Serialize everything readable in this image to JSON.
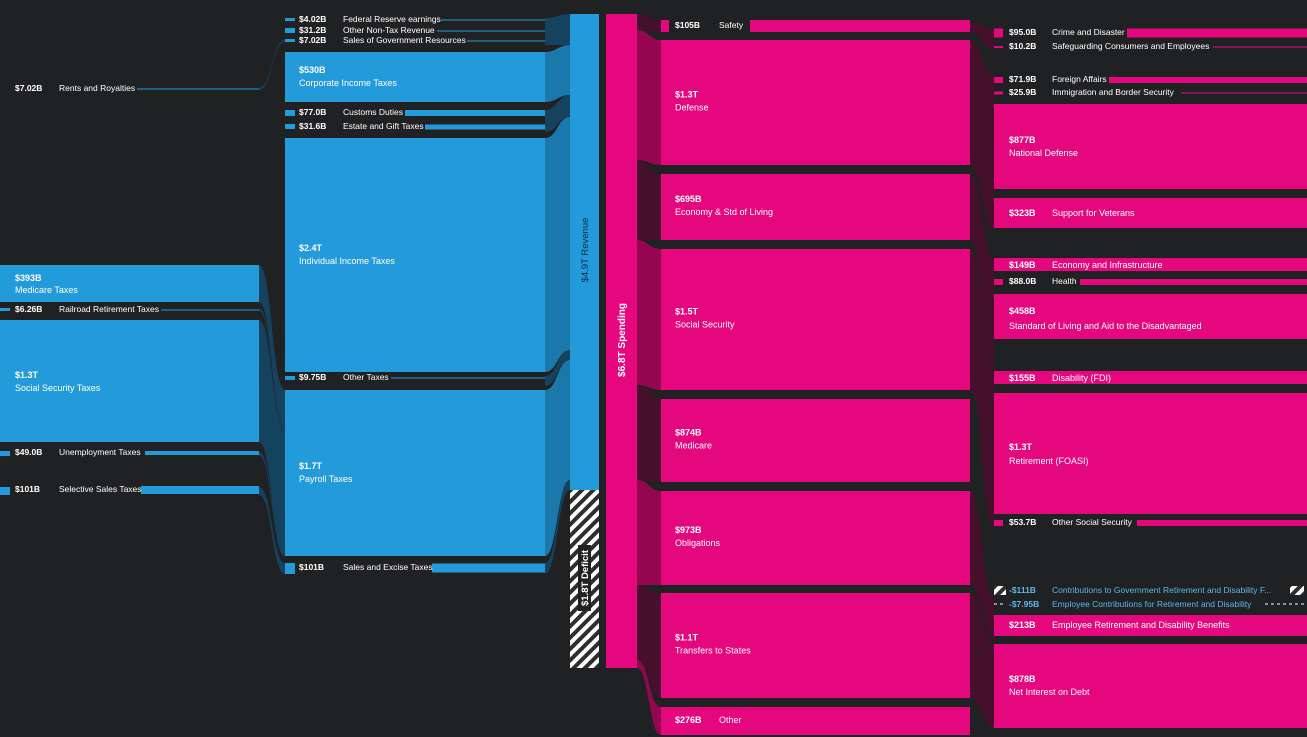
{
  "colors": {
    "background": "#202123",
    "revenue": "#239bda",
    "revenue_link": "#1b78aa",
    "revenue_link_dark": "#15425e",
    "spending": "#e5077e",
    "spending_link": "#94064f",
    "spending_link_dark": "#44102b",
    "deficit_stripe": "#ffffff",
    "deficit_stripe_bg": "#2e2e2e",
    "label_text": "#ffffff",
    "negative_text": "#5bb8ea"
  },
  "revenue": {
    "sources": [
      {
        "id": "rents",
        "value": "$7.02B",
        "label": "Rents and Royalties"
      },
      {
        "id": "medicare_taxes",
        "value": "$393B",
        "label": "Medicare Taxes"
      },
      {
        "id": "railroad",
        "value": "$6.26B",
        "label": "Railroad Retirement Taxes"
      },
      {
        "id": "ss_taxes",
        "value": "$1.3T",
        "label": "Social Security Taxes"
      },
      {
        "id": "unemployment",
        "value": "$49.0B",
        "label": "Unemployment Taxes"
      },
      {
        "id": "selective_sales",
        "value": "$101B",
        "label": "Selective Sales Taxes"
      }
    ],
    "categories": [
      {
        "id": "fed_reserve",
        "value": "$4.02B",
        "label": "Federal Reserve earnings"
      },
      {
        "id": "other_nontax",
        "value": "$31.2B",
        "label": "Other Non-Tax Revenue"
      },
      {
        "id": "sales_gov",
        "value": "$7.02B",
        "label": "Sales of Government Resources"
      },
      {
        "id": "corporate",
        "value": "$530B",
        "label": "Corporate Income Taxes"
      },
      {
        "id": "customs",
        "value": "$77.0B",
        "label": "Customs Duties"
      },
      {
        "id": "estate",
        "value": "$31.6B",
        "label": "Estate and Gift Taxes"
      },
      {
        "id": "individual",
        "value": "$2.4T",
        "label": "Individual Income Taxes"
      },
      {
        "id": "other_taxes",
        "value": "$9.75B",
        "label": "Other Taxes"
      },
      {
        "id": "payroll",
        "value": "$1.7T",
        "label": "Payroll Taxes"
      },
      {
        "id": "sales_excise",
        "value": "$101B",
        "label": "Sales and Excise Taxes"
      }
    ],
    "total": {
      "label": "$4.9T Revenue"
    },
    "deficit": {
      "label": "$1.8T Deficit"
    }
  },
  "spending": {
    "total": {
      "label": "$6.8T Spending"
    },
    "categories": [
      {
        "id": "safety",
        "value": "$105B",
        "label": "Safety"
      },
      {
        "id": "defense",
        "value": "$1.3T",
        "label": "Defense"
      },
      {
        "id": "economy",
        "value": "$695B",
        "label": "Economy & Std of Living"
      },
      {
        "id": "social_security",
        "value": "$1.5T",
        "label": "Social Security"
      },
      {
        "id": "medicare",
        "value": "$874B",
        "label": "Medicare"
      },
      {
        "id": "obligations",
        "value": "$973B",
        "label": "Obligations"
      },
      {
        "id": "transfers",
        "value": "$1.1T",
        "label": "Transfers to States"
      },
      {
        "id": "other",
        "value": "$276B",
        "label": "Other"
      }
    ],
    "subcategories": [
      {
        "id": "crime",
        "value": "$95.0B",
        "label": "Crime and Disaster"
      },
      {
        "id": "safeguarding",
        "value": "$10.2B",
        "label": "Safeguarding Consumers and Employees"
      },
      {
        "id": "foreign",
        "value": "$71.9B",
        "label": "Foreign Affairs"
      },
      {
        "id": "immigration",
        "value": "$25.9B",
        "label": "Immigration and Border Security"
      },
      {
        "id": "natdef",
        "value": "$877B",
        "label": "National Defense"
      },
      {
        "id": "veterans",
        "value": "$323B",
        "label": "Support for Veterans"
      },
      {
        "id": "econinfra",
        "value": "$149B",
        "label": "Economy and Infrastructure"
      },
      {
        "id": "health",
        "value": "$88.0B",
        "label": "Health"
      },
      {
        "id": "stdliving",
        "value": "$458B",
        "label": "Standard of Living and Aid to the Disadvantaged"
      },
      {
        "id": "fdi",
        "value": "$155B",
        "label": "Disability (FDI)"
      },
      {
        "id": "foasi",
        "value": "$1.3T",
        "label": "Retirement (FOASI)"
      },
      {
        "id": "other_ss",
        "value": "$53.7B",
        "label": "Other Social Security"
      },
      {
        "id": "contrib",
        "value": "-$111B",
        "label": "Contributions to Government Retirement and Disability F..."
      },
      {
        "id": "employee_contrib",
        "value": "-$7.95B",
        "label": "Employee Contributions for Retirement and Disability"
      },
      {
        "id": "emp_benefits",
        "value": "$213B",
        "label": "Employee Retirement and Disability Benefits"
      },
      {
        "id": "interest",
        "value": "$878B",
        "label": "Net Interest on Debt"
      }
    ]
  }
}
